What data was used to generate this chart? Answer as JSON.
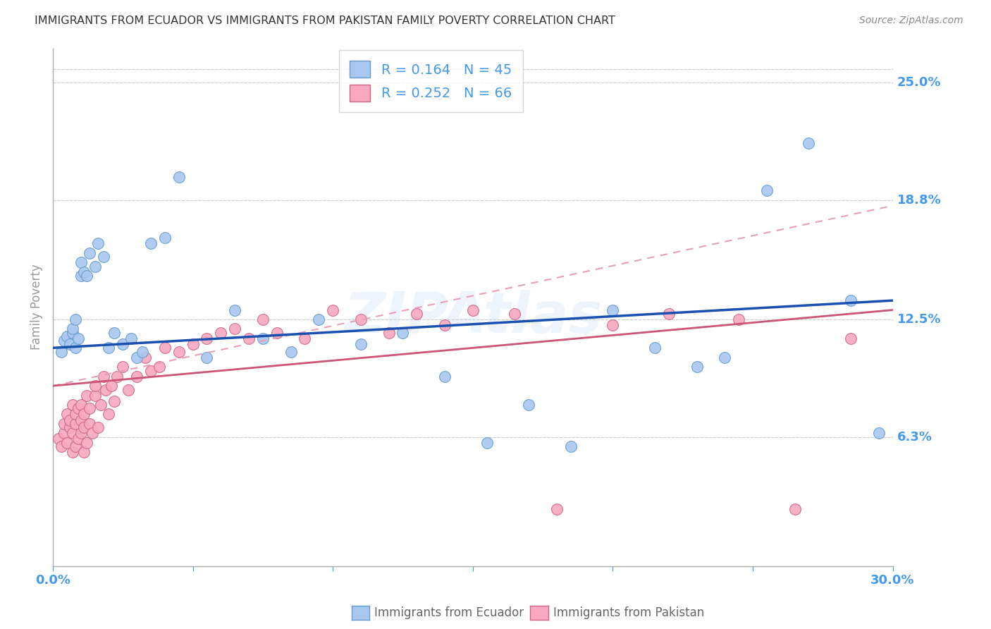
{
  "title": "IMMIGRANTS FROM ECUADOR VS IMMIGRANTS FROM PAKISTAN FAMILY POVERTY CORRELATION CHART",
  "source_text": "Source: ZipAtlas.com",
  "ylabel": "Family Poverty",
  "xlim": [
    0.0,
    0.3
  ],
  "ylim": [
    -0.005,
    0.268
  ],
  "ytick_positions": [
    0.063,
    0.125,
    0.188,
    0.25
  ],
  "ytick_labels": [
    "6.3%",
    "12.5%",
    "18.8%",
    "25.0%"
  ],
  "ecuador_color": "#a8c8f0",
  "ecuador_edge_color": "#6699cc",
  "pakistan_color": "#f8a8c0",
  "pakistan_edge_color": "#cc6688",
  "ecuador_R": 0.164,
  "ecuador_N": 45,
  "pakistan_R": 0.252,
  "pakistan_N": 66,
  "ecuador_line_color": "#1a50b0",
  "pakistan_line_color": "#cc5577",
  "pakistan_dash_color": "#e8a0b8",
  "ecuador_scatter_x": [
    0.003,
    0.004,
    0.005,
    0.006,
    0.007,
    0.007,
    0.008,
    0.008,
    0.009,
    0.01,
    0.01,
    0.011,
    0.012,
    0.013,
    0.015,
    0.016,
    0.018,
    0.02,
    0.022,
    0.025,
    0.028,
    0.03,
    0.032,
    0.035,
    0.04,
    0.045,
    0.055,
    0.065,
    0.075,
    0.085,
    0.095,
    0.11,
    0.125,
    0.14,
    0.155,
    0.17,
    0.185,
    0.2,
    0.215,
    0.23,
    0.24,
    0.255,
    0.27,
    0.285,
    0.295
  ],
  "ecuador_scatter_y": [
    0.108,
    0.114,
    0.116,
    0.112,
    0.118,
    0.12,
    0.11,
    0.125,
    0.115,
    0.148,
    0.155,
    0.15,
    0.148,
    0.16,
    0.153,
    0.165,
    0.158,
    0.11,
    0.118,
    0.112,
    0.115,
    0.105,
    0.108,
    0.165,
    0.168,
    0.2,
    0.105,
    0.13,
    0.115,
    0.108,
    0.125,
    0.112,
    0.118,
    0.095,
    0.06,
    0.08,
    0.058,
    0.13,
    0.11,
    0.1,
    0.105,
    0.193,
    0.218,
    0.135,
    0.065
  ],
  "pakistan_scatter_x": [
    0.002,
    0.003,
    0.004,
    0.004,
    0.005,
    0.005,
    0.006,
    0.006,
    0.007,
    0.007,
    0.007,
    0.008,
    0.008,
    0.008,
    0.009,
    0.009,
    0.01,
    0.01,
    0.01,
    0.011,
    0.011,
    0.011,
    0.012,
    0.012,
    0.013,
    0.013,
    0.014,
    0.015,
    0.015,
    0.016,
    0.017,
    0.018,
    0.019,
    0.02,
    0.021,
    0.022,
    0.023,
    0.025,
    0.027,
    0.03,
    0.033,
    0.035,
    0.038,
    0.04,
    0.045,
    0.05,
    0.055,
    0.06,
    0.065,
    0.07,
    0.075,
    0.08,
    0.09,
    0.1,
    0.11,
    0.12,
    0.13,
    0.14,
    0.15,
    0.165,
    0.18,
    0.2,
    0.22,
    0.245,
    0.265,
    0.285
  ],
  "pakistan_scatter_y": [
    0.062,
    0.058,
    0.065,
    0.07,
    0.06,
    0.075,
    0.068,
    0.072,
    0.055,
    0.065,
    0.08,
    0.058,
    0.07,
    0.075,
    0.062,
    0.078,
    0.072,
    0.065,
    0.08,
    0.055,
    0.068,
    0.075,
    0.06,
    0.085,
    0.07,
    0.078,
    0.065,
    0.085,
    0.09,
    0.068,
    0.08,
    0.095,
    0.088,
    0.075,
    0.09,
    0.082,
    0.095,
    0.1,
    0.088,
    0.095,
    0.105,
    0.098,
    0.1,
    0.11,
    0.108,
    0.112,
    0.115,
    0.118,
    0.12,
    0.115,
    0.125,
    0.118,
    0.115,
    0.13,
    0.125,
    0.118,
    0.128,
    0.122,
    0.13,
    0.128,
    0.025,
    0.122,
    0.128,
    0.125,
    0.025,
    0.115
  ],
  "watermark_text": "ZIPAtlas",
  "background_color": "#ffffff",
  "title_color": "#333333",
  "tick_label_color": "#4499ee",
  "grid_color": "#cccccc"
}
